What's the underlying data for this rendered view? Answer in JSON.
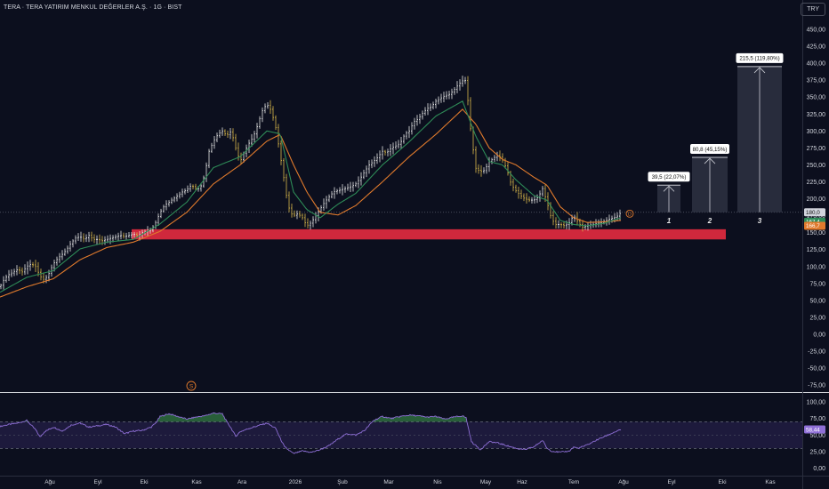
{
  "header": {
    "title": "TERA · TERA YATIRIM MENKUL DEĞERLER A.Ş. · 1G · BIST",
    "currency": "TRY"
  },
  "colors": {
    "background": "#0c0f1e",
    "candle_up": "#e8e8e8",
    "candle_gold": "#d9b84a",
    "ema_fast": "#2e8b57",
    "ema_slow": "#e07a2c",
    "support_zone": "#d0283c",
    "target_box": "#2a2e3e",
    "rsi_line": "#8e6fd6",
    "rsi_band": "#2b2456",
    "rsi_fill": "#3fa050"
  },
  "chart_data": [
    {
      "type": "candlestick",
      "title": "TERA · TERA YATIRIM MENKUL DEĞERLER A.Ş. · 1G · BIST",
      "x_ticks": [
        "Ağu",
        "Eyl",
        "Eki",
        "Kas",
        "Ara",
        "2026",
        "Şub",
        "Mar",
        "Nis",
        "May",
        "Haz",
        "Tem",
        "Ağu",
        "Eyl",
        "Eki",
        "Kas"
      ],
      "y_ticks": [
        "450,00",
        "425,00",
        "400,00",
        "375,00",
        "350,00",
        "325,00",
        "300,00",
        "275,00",
        "250,00",
        "225,00",
        "200,00",
        "175,00",
        "150,00",
        "125,00",
        "100,00",
        "75,00",
        "50,00",
        "25,00",
        "0,00",
        "-25,00",
        "-50,00",
        "-75,00"
      ],
      "ylim": [
        -80,
        460
      ],
      "price_series": [
        [
          0,
          70
        ],
        [
          5,
          82
        ],
        [
          10,
          88
        ],
        [
          15,
          92
        ],
        [
          20,
          96
        ],
        [
          25,
          92
        ],
        [
          30,
          100
        ],
        [
          35,
          104
        ],
        [
          40,
          100
        ],
        [
          45,
          86
        ],
        [
          50,
          80
        ],
        [
          55,
          90
        ],
        [
          60,
          104
        ],
        [
          65,
          112
        ],
        [
          70,
          118
        ],
        [
          75,
          125
        ],
        [
          80,
          135
        ],
        [
          85,
          142
        ],
        [
          90,
          144
        ],
        [
          95,
          140
        ],
        [
          100,
          146
        ],
        [
          105,
          140
        ],
        [
          110,
          140
        ],
        [
          115,
          138
        ],
        [
          120,
          140
        ],
        [
          125,
          142
        ],
        [
          130,
          144
        ],
        [
          135,
          146
        ],
        [
          140,
          144
        ],
        [
          145,
          146
        ],
        [
          150,
          148
        ],
        [
          155,
          145
        ],
        [
          160,
          150
        ],
        [
          165,
          152
        ],
        [
          170,
          154
        ],
        [
          175,
          165
        ],
        [
          180,
          180
        ],
        [
          185,
          190
        ],
        [
          190,
          195
        ],
        [
          195,
          200
        ],
        [
          200,
          205
        ],
        [
          205,
          210
        ],
        [
          210,
          213
        ],
        [
          215,
          220
        ],
        [
          220,
          215
        ],
        [
          225,
          215
        ],
        [
          230,
          235
        ],
        [
          235,
          270
        ],
        [
          240,
          285
        ],
        [
          245,
          295
        ],
        [
          250,
          300
        ],
        [
          255,
          293
        ],
        [
          260,
          300
        ],
        [
          265,
          275
        ],
        [
          270,
          255
        ],
        [
          275,
          270
        ],
        [
          280,
          282
        ],
        [
          285,
          292
        ],
        [
          290,
          310
        ],
        [
          295,
          330
        ],
        [
          300,
          340
        ],
        [
          305,
          330
        ],
        [
          310,
          305
        ],
        [
          315,
          265
        ],
        [
          318,
          240
        ],
        [
          322,
          205
        ],
        [
          326,
          180
        ],
        [
          330,
          175
        ],
        [
          335,
          178
        ],
        [
          340,
          172
        ],
        [
          345,
          160
        ],
        [
          350,
          165
        ],
        [
          355,
          175
        ],
        [
          360,
          185
        ],
        [
          365,
          195
        ],
        [
          370,
          203
        ],
        [
          375,
          210
        ],
        [
          380,
          212
        ],
        [
          385,
          214
        ],
        [
          390,
          216
        ],
        [
          395,
          218
        ],
        [
          400,
          222
        ],
        [
          405,
          230
        ],
        [
          410,
          240
        ],
        [
          415,
          250
        ],
        [
          420,
          255
        ],
        [
          425,
          262
        ],
        [
          430,
          270
        ],
        [
          435,
          268
        ],
        [
          440,
          275
        ],
        [
          445,
          278
        ],
        [
          450,
          282
        ],
        [
          455,
          295
        ],
        [
          460,
          300
        ],
        [
          465,
          313
        ],
        [
          470,
          318
        ],
        [
          475,
          326
        ],
        [
          480,
          333
        ],
        [
          485,
          336
        ],
        [
          490,
          344
        ],
        [
          495,
          348
        ],
        [
          500,
          352
        ],
        [
          505,
          354
        ],
        [
          510,
          360
        ],
        [
          515,
          368
        ],
        [
          520,
          374
        ],
        [
          524,
          375
        ],
        [
          527,
          330
        ],
        [
          530,
          290
        ],
        [
          535,
          245
        ],
        [
          540,
          240
        ],
        [
          545,
          242
        ],
        [
          550,
          255
        ],
        [
          555,
          260
        ],
        [
          560,
          265
        ],
        [
          565,
          257
        ],
        [
          570,
          243
        ],
        [
          575,
          220
        ],
        [
          580,
          212
        ],
        [
          585,
          205
        ],
        [
          590,
          200
        ],
        [
          595,
          198
        ],
        [
          600,
          198
        ],
        [
          605,
          202
        ],
        [
          610,
          215
        ],
        [
          615,
          195
        ],
        [
          620,
          170
        ],
        [
          625,
          162
        ],
        [
          630,
          162
        ],
        [
          635,
          160
        ],
        [
          640,
          165
        ],
        [
          645,
          175
        ],
        [
          650,
          165
        ],
        [
          655,
          158
        ],
        [
          660,
          160
        ],
        [
          665,
          162
        ],
        [
          670,
          163
        ],
        [
          675,
          165
        ],
        [
          680,
          167
        ],
        [
          685,
          170
        ],
        [
          690,
          172
        ],
        [
          695,
          175
        ],
        [
          698,
          180
        ]
      ],
      "ema_fast": [
        [
          0,
          62
        ],
        [
          30,
          84
        ],
        [
          60,
          94
        ],
        [
          90,
          126
        ],
        [
          120,
          136
        ],
        [
          150,
          140
        ],
        [
          180,
          163
        ],
        [
          210,
          195
        ],
        [
          240,
          246
        ],
        [
          270,
          262
        ],
        [
          300,
          300
        ],
        [
          315,
          296
        ],
        [
          330,
          210
        ],
        [
          345,
          184
        ],
        [
          360,
          172
        ],
        [
          380,
          192
        ],
        [
          400,
          208
        ],
        [
          430,
          250
        ],
        [
          460,
          284
        ],
        [
          490,
          322
        ],
        [
          520,
          344
        ],
        [
          535,
          292
        ],
        [
          550,
          255
        ],
        [
          565,
          250
        ],
        [
          580,
          228
        ],
        [
          600,
          205
        ],
        [
          615,
          198
        ],
        [
          630,
          168
        ],
        [
          645,
          162
        ],
        [
          660,
          160
        ],
        [
          680,
          164
        ],
        [
          698,
          172
        ]
      ],
      "ema_slow": [
        [
          0,
          55
        ],
        [
          30,
          70
        ],
        [
          60,
          82
        ],
        [
          90,
          110
        ],
        [
          120,
          128
        ],
        [
          150,
          136
        ],
        [
          180,
          152
        ],
        [
          210,
          180
        ],
        [
          240,
          222
        ],
        [
          270,
          250
        ],
        [
          300,
          285
        ],
        [
          315,
          295
        ],
        [
          330,
          250
        ],
        [
          345,
          210
        ],
        [
          360,
          180
        ],
        [
          380,
          176
        ],
        [
          400,
          190
        ],
        [
          430,
          225
        ],
        [
          460,
          262
        ],
        [
          490,
          295
        ],
        [
          520,
          332
        ],
        [
          535,
          310
        ],
        [
          550,
          275
        ],
        [
          565,
          258
        ],
        [
          580,
          250
        ],
        [
          600,
          232
        ],
        [
          615,
          220
        ],
        [
          630,
          188
        ],
        [
          645,
          172
        ],
        [
          660,
          165
        ],
        [
          680,
          166
        ],
        [
          698,
          168
        ]
      ],
      "support_zone": {
        "low": 140,
        "high": 155
      },
      "price_labels": [
        "180,0",
        "167,4",
        "166,7"
      ],
      "targets": [
        {
          "label": "39,5 (22,07%)",
          "number": "1",
          "top": 220
        },
        {
          "label": "80,8 (45,15%)",
          "number": "2",
          "top": 261
        },
        {
          "label": "215,5 (119,80%)",
          "number": "3",
          "top": 395
        }
      ],
      "base_level": 180,
      "markers": {
        "dividend": "D",
        "split": "S"
      }
    },
    {
      "type": "line",
      "title": "",
      "y_ticks": [
        "100,00",
        "75,00",
        "50,00",
        "25,00",
        "0,00"
      ],
      "ylim": [
        0,
        110
      ],
      "band": [
        30,
        70
      ],
      "mid": 50,
      "current_value": "58,44",
      "series": [
        [
          0,
          63
        ],
        [
          10,
          66
        ],
        [
          20,
          68
        ],
        [
          30,
          72
        ],
        [
          40,
          58
        ],
        [
          45,
          47
        ],
        [
          50,
          55
        ],
        [
          60,
          62
        ],
        [
          70,
          56
        ],
        [
          80,
          65
        ],
        [
          90,
          68
        ],
        [
          100,
          62
        ],
        [
          110,
          64
        ],
        [
          120,
          66
        ],
        [
          130,
          62
        ],
        [
          140,
          52
        ],
        [
          150,
          56
        ],
        [
          160,
          57
        ],
        [
          170,
          62
        ],
        [
          175,
          68
        ],
        [
          180,
          78
        ],
        [
          190,
          82
        ],
        [
          200,
          78
        ],
        [
          210,
          74
        ],
        [
          220,
          77
        ],
        [
          230,
          79
        ],
        [
          240,
          83
        ],
        [
          250,
          82
        ],
        [
          255,
          70
        ],
        [
          260,
          60
        ],
        [
          265,
          48
        ],
        [
          270,
          55
        ],
        [
          280,
          60
        ],
        [
          290,
          64
        ],
        [
          300,
          68
        ],
        [
          310,
          60
        ],
        [
          315,
          45
        ],
        [
          320,
          32
        ],
        [
          330,
          22
        ],
        [
          340,
          26
        ],
        [
          350,
          24
        ],
        [
          360,
          28
        ],
        [
          370,
          34
        ],
        [
          380,
          44
        ],
        [
          390,
          52
        ],
        [
          400,
          50
        ],
        [
          410,
          57
        ],
        [
          420,
          72
        ],
        [
          430,
          78
        ],
        [
          440,
          75
        ],
        [
          450,
          78
        ],
        [
          460,
          80
        ],
        [
          470,
          79
        ],
        [
          480,
          77
        ],
        [
          490,
          78
        ],
        [
          500,
          74
        ],
        [
          510,
          77
        ],
        [
          520,
          79
        ],
        [
          524,
          76
        ],
        [
          527,
          58
        ],
        [
          530,
          40
        ],
        [
          540,
          28
        ],
        [
          550,
          40
        ],
        [
          560,
          38
        ],
        [
          570,
          34
        ],
        [
          580,
          30
        ],
        [
          590,
          28
        ],
        [
          600,
          32
        ],
        [
          610,
          42
        ],
        [
          615,
          30
        ],
        [
          620,
          26
        ],
        [
          630,
          24
        ],
        [
          640,
          26
        ],
        [
          645,
          32
        ],
        [
          650,
          30
        ],
        [
          660,
          35
        ],
        [
          670,
          42
        ],
        [
          680,
          48
        ],
        [
          690,
          54
        ],
        [
          698,
          58
        ]
      ]
    }
  ]
}
